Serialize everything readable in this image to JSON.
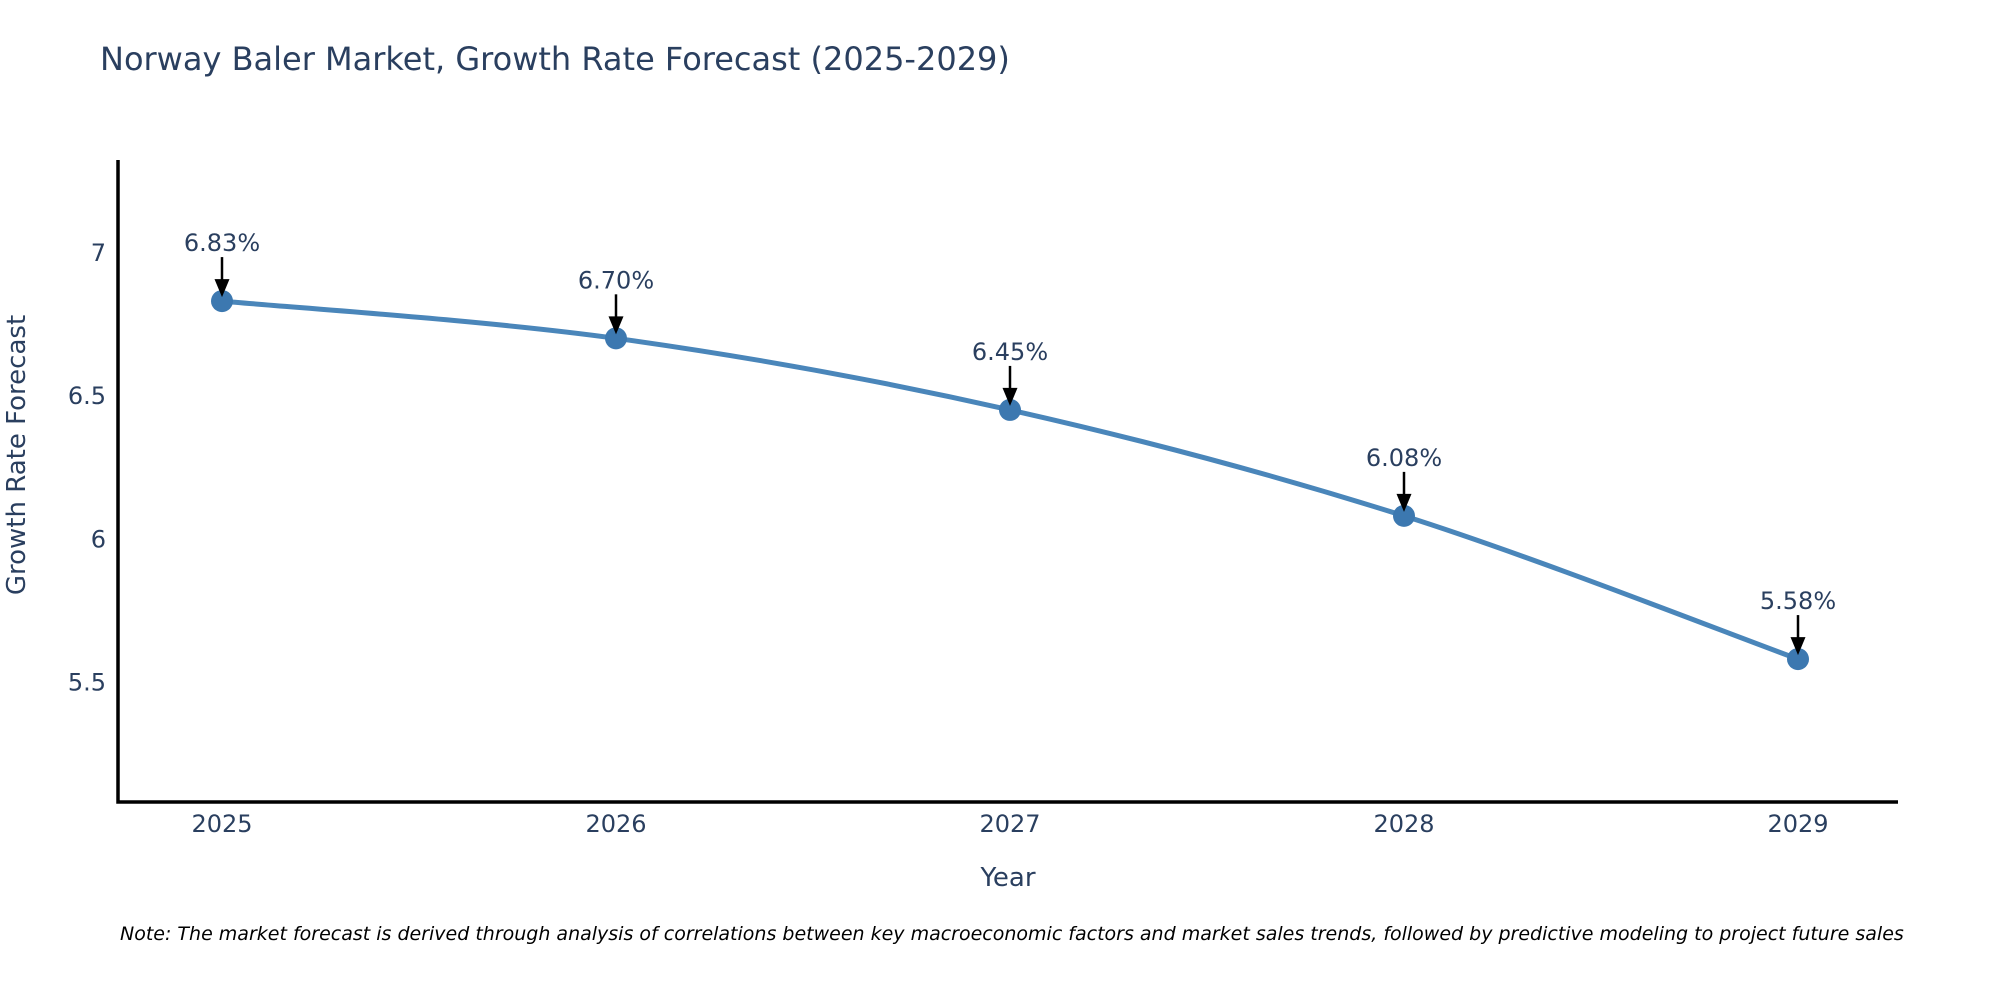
{
  "chart": {
    "title": "Norway Baler Market, Growth Rate Forecast (2025-2029)",
    "note": "Note: The market forecast is derived through analysis of correlations between key macroeconomic factors and market sales trends, followed by predictive modeling to project future sales"
  },
  "chart_data": {
    "type": "line",
    "title": "Norway Baler Market, Growth Rate Forecast (2025-2029)",
    "xlabel": "Year",
    "ylabel": "Growth Rate Forecast",
    "x": [
      2025,
      2026,
      2027,
      2028,
      2029
    ],
    "categories": [
      "2025",
      "2026",
      "2027",
      "2028",
      "2029"
    ],
    "values": [
      6.83,
      6.7,
      6.45,
      6.08,
      5.58
    ],
    "point_labels": [
      "6.83%",
      "6.70%",
      "6.45%",
      "6.08%",
      "5.58%"
    ],
    "yticks": [
      5.5,
      6,
      6.5,
      7
    ],
    "ytick_labels": [
      "5.5",
      "6",
      "6.5",
      "7"
    ],
    "ylim": [
      5.08,
      7.33
    ],
    "grid": false,
    "legend": "none",
    "line_shape": "spline",
    "line_color": "#4a86ba",
    "marker_color": "#3c78b0",
    "axis_color": "#000000",
    "text_color": "#2a3f5f",
    "annotation_arrow_color": "#000000",
    "note": "Note: The market forecast is derived through analysis of correlations between key macroeconomic factors and market sales trends, followed by predictive modeling to project future sales"
  }
}
